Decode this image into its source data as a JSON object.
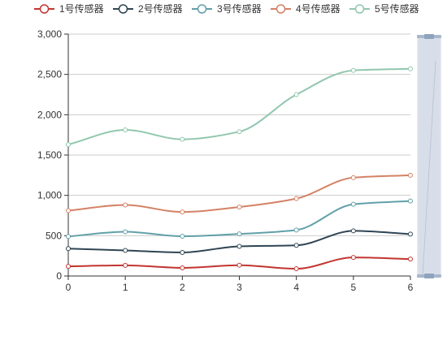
{
  "chart_data": {
    "type": "line",
    "smooth": true,
    "x": [
      0,
      1,
      2,
      3,
      4,
      5,
      6
    ],
    "xlim": [
      0,
      6
    ],
    "ylim": [
      0,
      3000
    ],
    "yticks": [
      0,
      500,
      1000,
      1500,
      2000,
      2500,
      3000
    ],
    "ytick_labels": [
      "0",
      "500",
      "1,000",
      "1,500",
      "2,000",
      "2,500",
      "3,000"
    ],
    "xtick_labels": [
      "0",
      "1",
      "2",
      "3",
      "4",
      "5",
      "6"
    ],
    "grid": true,
    "legend_position": "top",
    "data_zoom": "right",
    "series": [
      {
        "name": "1号传感器",
        "color": "#c23531",
        "values": [
          120,
          132,
          101,
          134,
          90,
          230,
          210
        ]
      },
      {
        "name": "2号传感器",
        "color": "#2f4554",
        "values": [
          340,
          317,
          292,
          368,
          380,
          560,
          520
        ]
      },
      {
        "name": "3号传感器",
        "color": "#61a0a8",
        "values": [
          490,
          549,
          493,
          522,
          570,
          890,
          930
        ]
      },
      {
        "name": "4号传感器",
        "color": "#d48265",
        "values": [
          810,
          881,
          794,
          856,
          960,
          1220,
          1250
        ]
      },
      {
        "name": "5号传感器",
        "color": "#91c7ae",
        "values": [
          1630,
          1812,
          1695,
          1790,
          2250,
          2550,
          2570
        ]
      }
    ]
  }
}
